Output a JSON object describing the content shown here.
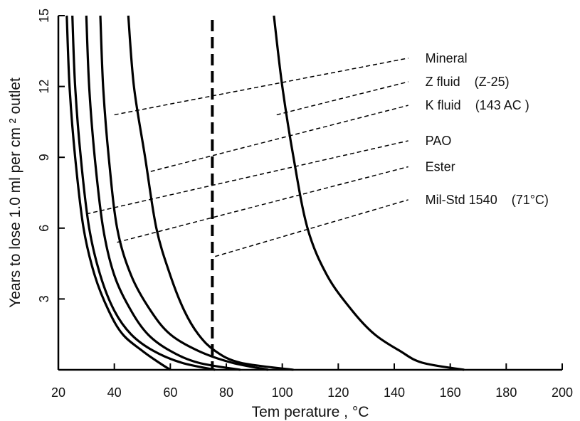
{
  "chart_data": {
    "type": "line",
    "xlabel": "Tem perature , °C",
    "ylabel": "Years to lose 1.0 ml per cm ² outlet",
    "xlim": [
      20,
      200
    ],
    "ylim": [
      0,
      15
    ],
    "x_ticks": [
      "20",
      "40",
      "60",
      "80",
      "100",
      "120",
      "140",
      "160",
      "180",
      "200"
    ],
    "y_ticks": [
      "3",
      "6",
      "9",
      "12",
      "15"
    ],
    "grid": false,
    "reference_line": {
      "x": 75,
      "style": "dashed"
    },
    "series": [
      {
        "x": [
          23,
          24,
          26,
          29,
          33,
          38,
          43,
          50,
          56,
          60
        ],
        "y": [
          15,
          12,
          9,
          6,
          4,
          2.5,
          1.5,
          0.8,
          0.3,
          0
        ]
      },
      {
        "x": [
          25,
          26,
          28,
          31,
          35,
          40,
          46,
          54,
          64,
          76
        ],
        "y": [
          15,
          12,
          9,
          6,
          4,
          2.5,
          1.5,
          0.8,
          0.3,
          0
        ]
      },
      {
        "x": [
          30,
          31,
          33,
          36,
          40,
          46,
          52,
          60,
          70,
          85
        ],
        "y": [
          15,
          12,
          9,
          6,
          4,
          2.5,
          1.5,
          0.8,
          0.3,
          0
        ]
      },
      {
        "x": [
          35,
          36,
          38,
          41,
          46,
          53,
          60,
          70,
          82,
          95
        ],
        "y": [
          15,
          12,
          9,
          6,
          4,
          2.5,
          1.5,
          0.8,
          0.3,
          0
        ]
      },
      {
        "x": [
          45,
          47,
          51,
          55,
          60,
          65,
          70,
          76,
          85,
          104
        ],
        "y": [
          15,
          12,
          9,
          6,
          4,
          2.5,
          1.5,
          0.8,
          0.3,
          0
        ]
      },
      {
        "x": [
          97,
          100,
          104,
          109,
          116,
          125,
          133,
          142,
          150,
          165
        ],
        "y": [
          15,
          12,
          9,
          6,
          4,
          2.5,
          1.5,
          0.8,
          0.3,
          0
        ]
      }
    ],
    "annotations": [
      {
        "text": "Mineral",
        "from": [
          40,
          10.8
        ],
        "to": [
          145,
          13.2
        ]
      },
      {
        "text": "Z fluid    (Z-25)",
        "from": [
          98,
          10.8
        ],
        "to": [
          145,
          12.2
        ]
      },
      {
        "text": "K fluid    (143 AC )",
        "from": [
          53,
          8.4
        ],
        "to": [
          145,
          11.2
        ]
      },
      {
        "text": "PAO",
        "from": [
          30,
          6.6
        ],
        "to": [
          145,
          9.7
        ]
      },
      {
        "text": "Ester",
        "from": [
          41,
          5.4
        ],
        "to": [
          145,
          8.6
        ]
      },
      {
        "text": "Mil-Std 1540    (71°C)",
        "from": [
          76,
          4.8
        ],
        "to": [
          145,
          7.2
        ]
      }
    ]
  }
}
